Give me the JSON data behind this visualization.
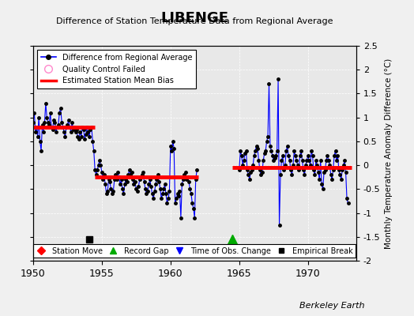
{
  "title": "LIBENGE",
  "subtitle": "Difference of Station Temperature Data from Regional Average",
  "ylabel": "Monthly Temperature Anomaly Difference (°C)",
  "xlabel_credit": "Berkeley Earth",
  "xlim": [
    1950,
    1973.5
  ],
  "ylim": [
    -2.0,
    2.5
  ],
  "yticks": [
    -2.0,
    -1.5,
    -1.0,
    -0.5,
    0.0,
    0.5,
    1.0,
    1.5,
    2.0,
    2.5
  ],
  "xticks": [
    1950,
    1955,
    1960,
    1965,
    1970
  ],
  "bg_color": "#e8e8e8",
  "plot_bg_color": "#e8e8e8",
  "line_color": "#0000ff",
  "dot_color": "#000000",
  "bias_color": "#ff0000",
  "segment1": {
    "x_start": 1950.0,
    "x_end": 1954.5,
    "bias": 0.8
  },
  "segment2": {
    "x_start": 1954.5,
    "x_end": 1962.0,
    "bias": -0.25
  },
  "segment3": {
    "x_start": 1964.5,
    "x_end": 1973.2,
    "bias": -0.05
  },
  "empirical_break_x": 1954.08,
  "empirical_break_y": -1.55,
  "record_gap_x": 1964.5,
  "record_gap_y": -1.55,
  "gap_x1": 1962.0,
  "gap_x2": 1964.5,
  "data_x": [
    1950.0,
    1950.083,
    1950.167,
    1950.25,
    1950.333,
    1950.417,
    1950.5,
    1950.583,
    1950.667,
    1950.75,
    1950.833,
    1950.917,
    1951.0,
    1951.083,
    1951.167,
    1951.25,
    1951.333,
    1951.417,
    1951.5,
    1951.583,
    1951.667,
    1951.75,
    1951.833,
    1951.917,
    1952.0,
    1952.083,
    1952.167,
    1952.25,
    1952.333,
    1952.417,
    1952.5,
    1952.583,
    1952.667,
    1952.75,
    1952.833,
    1952.917,
    1953.0,
    1953.083,
    1953.167,
    1953.25,
    1953.333,
    1953.417,
    1953.5,
    1953.583,
    1953.667,
    1953.75,
    1953.833,
    1953.917,
    1954.0,
    1954.083,
    1954.167,
    1954.25,
    1954.333,
    1954.417,
    1954.5,
    1954.583,
    1954.667,
    1954.75,
    1954.833,
    1954.917,
    1955.0,
    1955.083,
    1955.167,
    1955.25,
    1955.333,
    1955.417,
    1955.5,
    1955.583,
    1955.667,
    1955.75,
    1955.833,
    1955.917,
    1956.0,
    1956.083,
    1956.167,
    1956.25,
    1956.333,
    1956.417,
    1956.5,
    1956.583,
    1956.667,
    1956.75,
    1956.833,
    1956.917,
    1957.0,
    1957.083,
    1957.167,
    1957.25,
    1957.333,
    1957.417,
    1957.5,
    1957.583,
    1957.667,
    1957.75,
    1957.833,
    1957.917,
    1958.0,
    1958.083,
    1958.167,
    1958.25,
    1958.333,
    1958.417,
    1958.5,
    1958.583,
    1958.667,
    1958.75,
    1958.833,
    1958.917,
    1959.0,
    1959.083,
    1959.167,
    1959.25,
    1959.333,
    1959.417,
    1959.5,
    1959.583,
    1959.667,
    1959.75,
    1959.833,
    1959.917,
    1960.0,
    1960.083,
    1960.167,
    1960.25,
    1960.333,
    1960.417,
    1960.5,
    1960.583,
    1960.667,
    1960.75,
    1960.833,
    1960.917,
    1961.0,
    1961.083,
    1961.167,
    1961.25,
    1961.333,
    1961.417,
    1961.5,
    1961.583,
    1961.667,
    1961.75,
    1961.833,
    1961.917,
    1965.0,
    1965.083,
    1965.167,
    1965.25,
    1965.333,
    1965.417,
    1965.5,
    1965.583,
    1965.667,
    1965.75,
    1965.833,
    1965.917,
    1966.0,
    1966.083,
    1966.167,
    1966.25,
    1966.333,
    1966.417,
    1966.5,
    1966.583,
    1966.667,
    1966.75,
    1966.833,
    1966.917,
    1967.0,
    1967.083,
    1967.167,
    1967.25,
    1967.333,
    1967.417,
    1967.5,
    1967.583,
    1967.667,
    1967.75,
    1967.833,
    1967.917,
    1968.0,
    1968.083,
    1968.167,
    1968.25,
    1968.333,
    1968.417,
    1968.5,
    1968.583,
    1968.667,
    1968.75,
    1968.833,
    1968.917,
    1969.0,
    1969.083,
    1969.167,
    1969.25,
    1969.333,
    1969.417,
    1969.5,
    1969.583,
    1969.667,
    1969.75,
    1969.833,
    1969.917,
    1970.0,
    1970.083,
    1970.167,
    1970.25,
    1970.333,
    1970.417,
    1970.5,
    1970.583,
    1970.667,
    1970.75,
    1970.833,
    1970.917,
    1971.0,
    1971.083,
    1971.167,
    1971.25,
    1971.333,
    1971.417,
    1971.5,
    1971.583,
    1971.667,
    1971.75,
    1971.833,
    1971.917,
    1972.0,
    1972.083,
    1972.167,
    1972.25,
    1972.333,
    1972.417,
    1972.5,
    1972.583,
    1972.667,
    1972.75,
    1972.833,
    1972.917
  ],
  "data_y": [
    0.9,
    1.1,
    0.7,
    0.8,
    0.6,
    1.0,
    0.5,
    0.3,
    0.85,
    0.7,
    0.9,
    1.3,
    1.0,
    0.9,
    0.85,
    1.1,
    0.8,
    0.75,
    0.95,
    0.9,
    0.7,
    0.8,
    0.85,
    1.1,
    1.2,
    0.9,
    0.8,
    0.7,
    0.6,
    0.8,
    0.85,
    0.95,
    0.8,
    0.7,
    0.9,
    0.75,
    0.8,
    0.7,
    0.75,
    0.6,
    0.55,
    0.7,
    0.6,
    0.8,
    0.75,
    0.55,
    0.65,
    0.8,
    0.7,
    0.6,
    0.75,
    0.8,
    0.5,
    0.3,
    -0.1,
    -0.2,
    -0.1,
    0.0,
    0.1,
    0.0,
    -0.15,
    -0.3,
    -0.2,
    -0.4,
    -0.6,
    -0.55,
    -0.3,
    -0.35,
    -0.5,
    -0.6,
    -0.55,
    -0.3,
    -0.2,
    -0.3,
    -0.15,
    -0.25,
    -0.4,
    -0.3,
    -0.5,
    -0.6,
    -0.4,
    -0.3,
    -0.35,
    -0.2,
    -0.1,
    -0.2,
    -0.15,
    -0.3,
    -0.4,
    -0.35,
    -0.5,
    -0.55,
    -0.45,
    -0.3,
    -0.25,
    -0.2,
    -0.15,
    -0.35,
    -0.5,
    -0.6,
    -0.55,
    -0.4,
    -0.3,
    -0.45,
    -0.6,
    -0.7,
    -0.55,
    -0.4,
    -0.3,
    -0.2,
    -0.35,
    -0.5,
    -0.7,
    -0.6,
    -0.5,
    -0.4,
    -0.6,
    -0.8,
    -0.7,
    -0.55,
    0.4,
    0.3,
    0.5,
    0.35,
    -0.8,
    -0.7,
    -0.6,
    -0.65,
    -0.55,
    -1.1,
    -0.4,
    -0.3,
    -0.2,
    -0.15,
    -0.3,
    -0.25,
    -0.35,
    -0.5,
    -0.6,
    -0.8,
    -0.9,
    -1.1,
    -0.3,
    -0.1,
    -0.1,
    0.3,
    0.2,
    0.0,
    0.1,
    0.25,
    0.3,
    -0.1,
    -0.2,
    -0.3,
    -0.15,
    -0.1,
    0.0,
    0.2,
    0.3,
    0.4,
    0.35,
    0.1,
    -0.1,
    -0.2,
    -0.15,
    0.1,
    0.25,
    0.3,
    0.5,
    0.6,
    1.7,
    0.4,
    0.3,
    0.2,
    0.1,
    0.15,
    0.2,
    0.3,
    1.8,
    -1.25,
    -0.2,
    0.1,
    0.2,
    -0.1,
    0.0,
    0.3,
    0.4,
    0.2,
    0.1,
    -0.1,
    -0.2,
    0.0,
    0.3,
    0.2,
    0.1,
    0.0,
    -0.1,
    0.2,
    0.3,
    0.1,
    -0.1,
    -0.2,
    0.0,
    0.1,
    0.2,
    0.1,
    0.0,
    0.3,
    0.2,
    -0.1,
    -0.2,
    0.1,
    0.0,
    -0.15,
    -0.3,
    0.1,
    -0.4,
    -0.5,
    -0.15,
    -0.1,
    0.1,
    0.2,
    0.1,
    0.0,
    -0.2,
    -0.3,
    -0.1,
    0.2,
    0.3,
    0.1,
    0.2,
    -0.1,
    -0.2,
    -0.3,
    -0.1,
    0.0,
    0.1,
    -0.15,
    -0.7,
    -0.8
  ]
}
